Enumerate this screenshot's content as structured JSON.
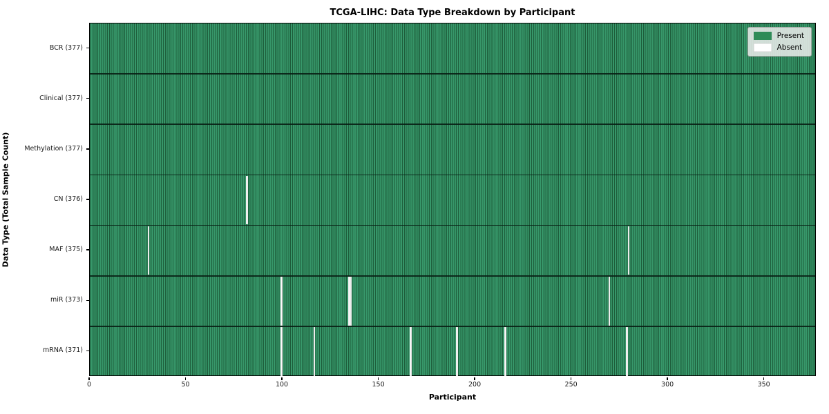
{
  "title": "TCGA-LIHC: Data Type Breakdown by Participant",
  "xlabel": "Participant",
  "ylabel": "Data Type (Total Sample Count)",
  "legend": {
    "present_label": "Present",
    "absent_label": "Absent"
  },
  "colors": {
    "present": "#2e8b57",
    "present_stripe_dark": "#1d5c3a",
    "absent": "#fafafa",
    "row_divider": "#0a1c12",
    "legend_background": "#e8eae8",
    "plot_border": "#000000"
  },
  "chart_data": {
    "type": "heatmap",
    "title": "TCGA-LIHC: Data Type Breakdown by Participant",
    "xlabel": "Participant",
    "ylabel": "Data Type (Total Sample Count)",
    "xlim": [
      0,
      377
    ],
    "x_ticks": [
      0,
      50,
      100,
      150,
      200,
      250,
      300,
      350
    ],
    "total_participants": 377,
    "grid": "per-cell vertical borders, dark row dividers",
    "legend_position": "upper right",
    "legend_entries": [
      "Present",
      "Absent"
    ],
    "rows": [
      {
        "label": "BCR (377)",
        "data_type": "BCR",
        "present_count": 377,
        "absent_count": 0,
        "absent_participants": []
      },
      {
        "label": "Clinical (377)",
        "data_type": "Clinical",
        "present_count": 377,
        "absent_count": 0,
        "absent_participants": []
      },
      {
        "label": "Methylation (377)",
        "data_type": "Methylation",
        "present_count": 377,
        "absent_count": 0,
        "absent_participants": []
      },
      {
        "label": "CN (376)",
        "data_type": "CN",
        "present_count": 376,
        "absent_count": 1,
        "absent_participants": [
          81
        ]
      },
      {
        "label": "MAF (375)",
        "data_type": "MAF",
        "present_count": 375,
        "absent_count": 2,
        "absent_participants": [
          30,
          279
        ]
      },
      {
        "label": "miR (373)",
        "data_type": "miR",
        "present_count": 373,
        "absent_count": 4,
        "absent_participants": [
          99,
          134,
          135,
          269
        ]
      },
      {
        "label": "mRNA (371)",
        "data_type": "mRNA",
        "present_count": 371,
        "absent_count": 6,
        "absent_participants": [
          99,
          116,
          166,
          190,
          215,
          278
        ]
      }
    ]
  }
}
